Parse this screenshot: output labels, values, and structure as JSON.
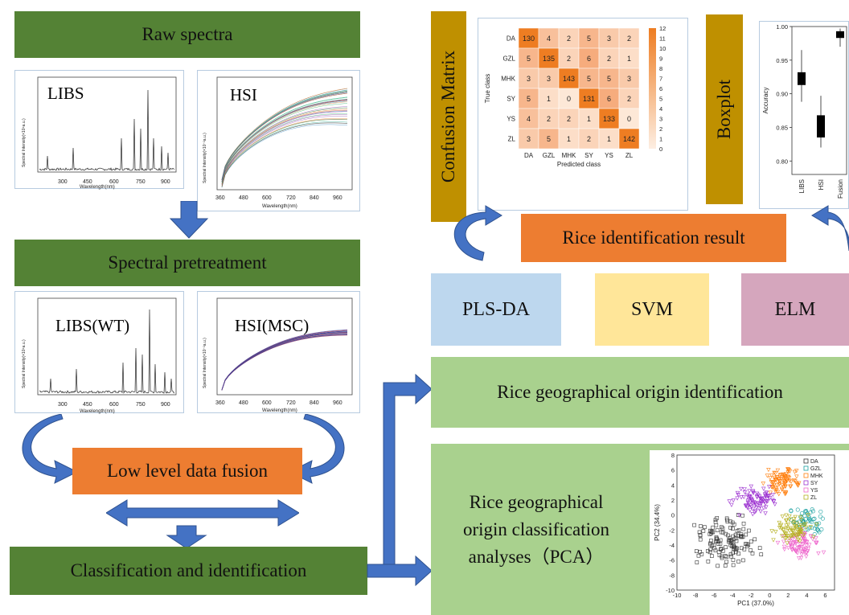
{
  "steps": {
    "raw": "Raw spectra",
    "pretreat": "Spectral pretreatment",
    "fusion": "Low level data fusion",
    "classify": "Classification and identification",
    "result": "Rice identification result",
    "origin": "Rice geographical origin identification",
    "pca_line1": "Rice geographical",
    "pca_line2": "origin classification",
    "pca_line3": "analyses（PCA）"
  },
  "models": {
    "pls": "PLS-DA",
    "svm": "SVM",
    "elm": "ELM"
  },
  "side_labels": {
    "cm": "Confusion Matrix",
    "box": "Boxplot"
  },
  "panels": {
    "libs_raw": {
      "label": "LIBS",
      "xticks": [
        "300",
        "450",
        "600",
        "750",
        "900"
      ],
      "ylabel": "Spectral Intensity(×10⁴a.u.)",
      "xlabel": "Wavelength(nm)"
    },
    "hsi_raw": {
      "label": "HSI",
      "xticks": [
        "360",
        "480",
        "600",
        "720",
        "840",
        "960"
      ],
      "ylabel": "Spectral Intensity(×10⁻²a.u.)",
      "xlabel": "Wavelength(nm)"
    },
    "libs_wt": {
      "label": "LIBS(WT)",
      "xticks": [
        "300",
        "450",
        "600",
        "750",
        "900"
      ],
      "ylabel": "Spectral Intensity(×10⁴a.u.)",
      "xlabel": "Wavelength(nm)"
    },
    "hsi_msc": {
      "label": "HSI(MSC)",
      "xticks": [
        "360",
        "480",
        "600",
        "720",
        "840",
        "960"
      ],
      "ylabel": "Spectral Intensity(×10⁻²a.u.)",
      "xlabel": "Wavelength(nm)"
    }
  },
  "chart_data": [
    {
      "type": "heatmap",
      "ylabel": "True class",
      "xlabel": "Predicted class",
      "classes": [
        "DA",
        "GZL",
        "MHK",
        "SY",
        "YS",
        "ZL"
      ],
      "matrix": [
        [
          130,
          4,
          2,
          5,
          3,
          2
        ],
        [
          5,
          135,
          2,
          6,
          2,
          1
        ],
        [
          3,
          3,
          143,
          5,
          5,
          3
        ],
        [
          5,
          1,
          0,
          131,
          6,
          2
        ],
        [
          4,
          2,
          2,
          1,
          133,
          0
        ],
        [
          3,
          5,
          1,
          2,
          1,
          142
        ]
      ],
      "colorbar_ticks": [
        "12",
        "11",
        "10",
        "9",
        "8",
        "7",
        "6",
        "5",
        "4",
        "3",
        "2",
        "1",
        "0"
      ]
    },
    {
      "type": "boxplot",
      "ylabel": "Accuracy",
      "categories": [
        "LIBS",
        "HSI",
        "Fusion"
      ],
      "ylim": [
        0.78,
        1.0
      ],
      "yticks": [
        "1.00",
        "0.95",
        "0.90",
        "0.85",
        "0.80"
      ],
      "stats": [
        {
          "name": "LIBS",
          "min": 0.888,
          "q1": 0.913,
          "median": 0.922,
          "q3": 0.932,
          "max": 0.965
        },
        {
          "name": "HSI",
          "min": 0.82,
          "q1": 0.835,
          "median": 0.85,
          "q3": 0.868,
          "max": 0.897
        },
        {
          "name": "Fusion",
          "min": 0.97,
          "q1": 0.983,
          "median": 0.989,
          "q3": 0.993,
          "max": 0.997
        }
      ]
    },
    {
      "type": "scatter",
      "xlabel": "PC1 (37.0%)",
      "ylabel": "PC2 (34.4%)",
      "xlim": [
        -10,
        7
      ],
      "ylim": [
        -10,
        8
      ],
      "xticks": [
        "-10",
        "-8",
        "-6",
        "-4",
        "-2",
        "0",
        "2",
        "4",
        "6"
      ],
      "yticks": [
        "8",
        "6",
        "4",
        "2",
        "0",
        "-2",
        "-4",
        "-6",
        "-8",
        "-10"
      ],
      "legend": [
        "DA",
        "GZL",
        "MHK",
        "SY",
        "YS",
        "ZL"
      ],
      "colors": [
        "#333333",
        "#1aa0a0",
        "#ff7f0e",
        "#9b30d0",
        "#ee66cc",
        "#b5b020"
      ],
      "clusters": [
        {
          "name": "DA",
          "cx": -4.5,
          "cy": -3.5,
          "sx": 2.5,
          "sy": 2.5,
          "n": 130
        },
        {
          "name": "GZL",
          "cx": 4.0,
          "cy": -0.5,
          "sx": 1.3,
          "sy": 1.6,
          "n": 60
        },
        {
          "name": "MHK",
          "cx": 1.5,
          "cy": 4.5,
          "sx": 1.4,
          "sy": 1.5,
          "n": 90
        },
        {
          "name": "SY",
          "cx": -1.5,
          "cy": 2.0,
          "sx": 1.8,
          "sy": 1.5,
          "n": 90
        },
        {
          "name": "YS",
          "cx": 3.5,
          "cy": -4.0,
          "sx": 1.6,
          "sy": 1.3,
          "n": 80
        },
        {
          "name": "ZL",
          "cx": 2.5,
          "cy": -2.0,
          "sx": 1.5,
          "sy": 1.5,
          "n": 80
        }
      ]
    }
  ]
}
